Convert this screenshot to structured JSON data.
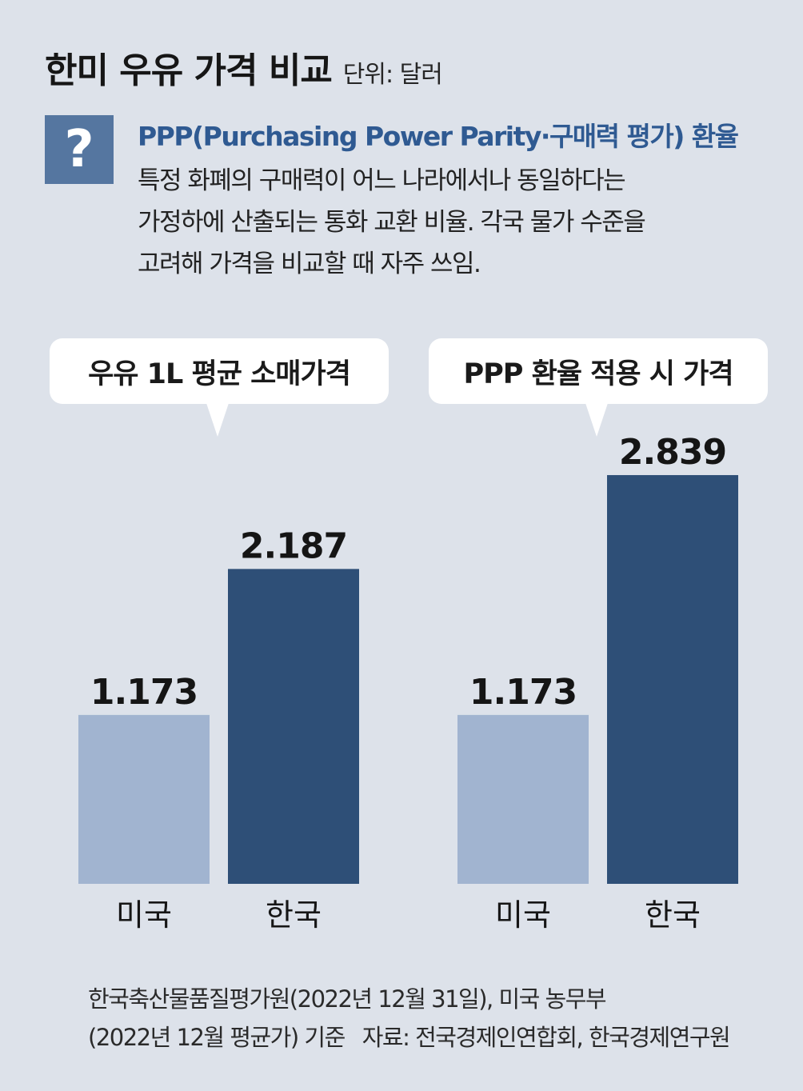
{
  "header": {
    "title": "한미 우유 가격 비교",
    "unit": "단위: 달러"
  },
  "definition": {
    "icon": "question-mark-icon",
    "icon_glyph": "?",
    "term": "PPP(Purchasing Power Parity·구매력 평가) 환율",
    "lines": [
      "특정 화폐의 구매력이 어느 나라에서나 동일하다는",
      "가정하에 산출되는 통화 교환 비율. 각국 물가 수준을",
      "고려해 가격을 비교할 때 자주 쓰임."
    ]
  },
  "colors": {
    "background": "#dde2ea",
    "us_bar": "#a1b4d0",
    "korea_bar": "#2e4f77",
    "accent": "#2f5a92"
  },
  "chart_data": [
    {
      "type": "bar",
      "title": "우유 1L 평균 소매가격",
      "categories": [
        "미국",
        "한국"
      ],
      "values": [
        1.173,
        2.187
      ],
      "value_labels": [
        "1.173",
        "2.187"
      ],
      "ylim": [
        0,
        3.0
      ]
    },
    {
      "type": "bar",
      "title": "PPP 환율 적용 시 가격",
      "categories": [
        "미국",
        "한국"
      ],
      "values": [
        1.173,
        2.839
      ],
      "value_labels": [
        "1.173",
        "2.839"
      ],
      "ylim": [
        0,
        3.0
      ]
    }
  ],
  "footer": {
    "basis_line1": "한국축산물품질평가원(2022년 12월 31일), 미국 농무부",
    "basis_line2": "(2022년 12월 평균가) 기준",
    "source": "자료: 전국경제인연합회, 한국경제연구원"
  }
}
